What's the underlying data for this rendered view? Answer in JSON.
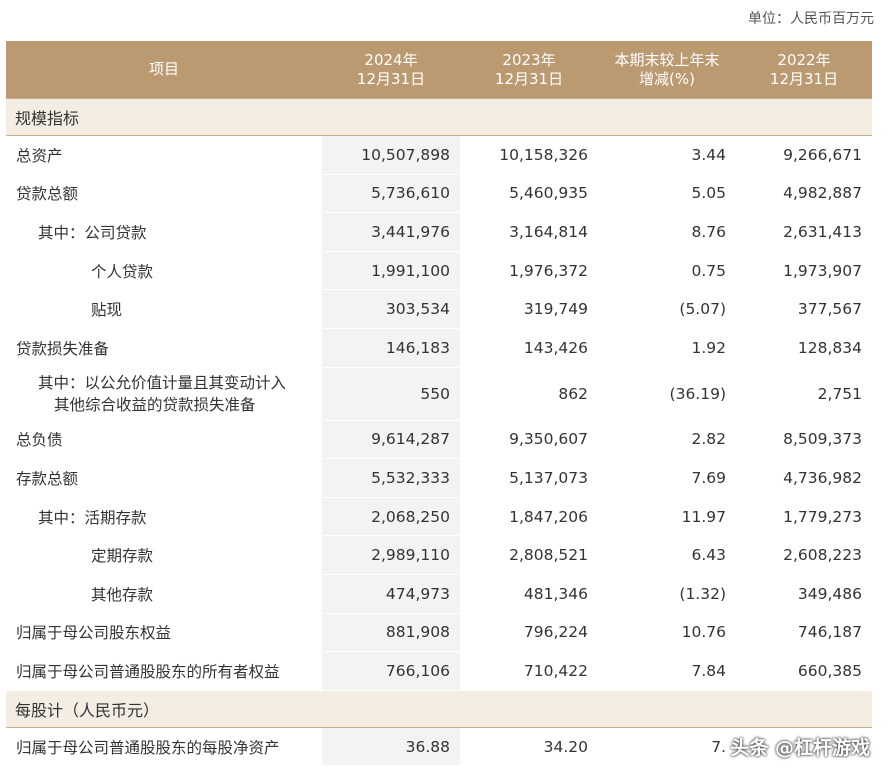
{
  "unit": "单位：人民币百万元",
  "headers": [
    {
      "line1": "项目",
      "line2": ""
    },
    {
      "line1": "2024年",
      "line2": "12月31日"
    },
    {
      "line1": "2023年",
      "line2": "12月31日"
    },
    {
      "line1": "本期末较上年末",
      "line2": "增减(%)"
    },
    {
      "line1": "2022年",
      "line2": "12月31日"
    }
  ],
  "section1": "规模指标",
  "rows": [
    {
      "label": "总资产",
      "v2024": "10,507,898",
      "v2023": "10,158,326",
      "chg": "3.44",
      "v2022": "9,266,671"
    },
    {
      "label": "贷款总额",
      "v2024": "5,736,610",
      "v2023": "5,460,935",
      "chg": "5.05",
      "v2022": "4,982,887"
    },
    {
      "label": "其中：公司贷款",
      "v2024": "3,441,976",
      "v2023": "3,164,814",
      "chg": "8.76",
      "v2022": "2,631,413"
    },
    {
      "label": "个人贷款",
      "v2024": "1,991,100",
      "v2023": "1,976,372",
      "chg": "0.75",
      "v2022": "1,973,907"
    },
    {
      "label": "贴现",
      "v2024": "303,534",
      "v2023": "319,749",
      "chg": "(5.07)",
      "v2022": "377,567"
    },
    {
      "label": "贷款损失准备",
      "v2024": "146,183",
      "v2023": "143,426",
      "chg": "1.92",
      "v2022": "128,834"
    },
    {
      "label_line1": "其中：以公允价值计量且其变动计入",
      "label_line2": "其他综合收益的贷款损失准备",
      "v2024": "550",
      "v2023": "862",
      "chg": "(36.19)",
      "v2022": "2,751"
    },
    {
      "label": "总负债",
      "v2024": "9,614,287",
      "v2023": "9,350,607",
      "chg": "2.82",
      "v2022": "8,509,373"
    },
    {
      "label": "存款总额",
      "v2024": "5,532,333",
      "v2023": "5,137,073",
      "chg": "7.69",
      "v2022": "4,736,982"
    },
    {
      "label": "其中：活期存款",
      "v2024": "2,068,250",
      "v2023": "1,847,206",
      "chg": "11.97",
      "v2022": "1,779,273"
    },
    {
      "label": "定期存款",
      "v2024": "2,989,110",
      "v2023": "2,808,521",
      "chg": "6.43",
      "v2022": "2,608,223"
    },
    {
      "label": "其他存款",
      "v2024": "474,973",
      "v2023": "481,346",
      "chg": "(1.32)",
      "v2022": "349,486"
    },
    {
      "label": "归属于母公司股东权益",
      "v2024": "881,908",
      "v2023": "796,224",
      "chg": "10.76",
      "v2022": "746,187"
    },
    {
      "label": "归属于母公司普通股股东的所有者权益",
      "v2024": "766,106",
      "v2023": "710,422",
      "chg": "7.84",
      "v2022": "660,385"
    }
  ],
  "section2": "每股计（人民币元）",
  "rows2": [
    {
      "label": "归属于母公司普通股股东的每股净资产",
      "v2024": "36.88",
      "v2023": "34.20",
      "chg": "7.",
      "v2022": ""
    }
  ],
  "watermark": "头条 @杠杆游戏"
}
